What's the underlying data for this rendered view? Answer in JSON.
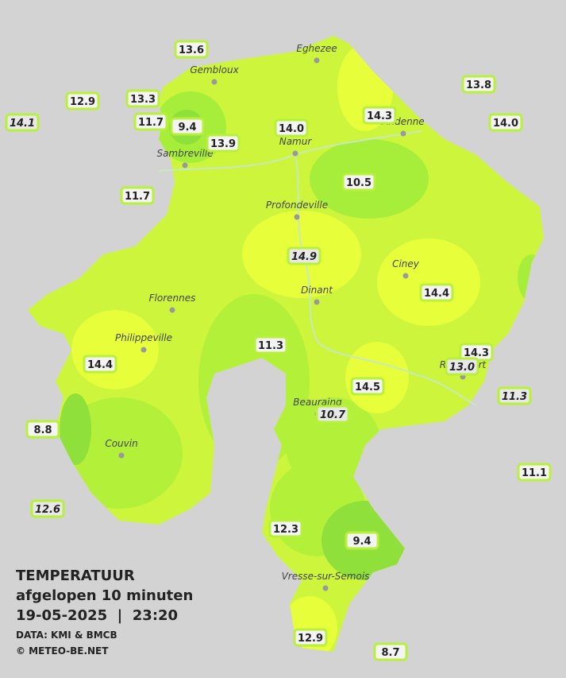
{
  "legend": {
    "title": "TEMPERATUUR",
    "period": "afgelopen 10 minuten",
    "timestamp": "19-05-2025  |  23:20",
    "source": "DATA: KMI & BMCB",
    "copyright": "© METEO-BE.NET"
  },
  "towns": [
    "Eghezee",
    "Gembloux",
    "Andenne",
    "Namur",
    "Sambreville",
    "Profondeville",
    "Ciney",
    "Florennes",
    "Dinant",
    "Philippeville",
    "Rochefort",
    "Beauraing",
    "Couvin",
    "Vresse-sur-Semois"
  ],
  "stations": [
    {
      "label": "13.6"
    },
    {
      "label": "12.9"
    },
    {
      "label": "13.3"
    },
    {
      "label": "14.1",
      "italic": true
    },
    {
      "label": "11.7"
    },
    {
      "label": "9.4"
    },
    {
      "label": "13.9"
    },
    {
      "label": "14.0"
    },
    {
      "label": "14.3"
    },
    {
      "label": "13.8"
    },
    {
      "label": "14.0"
    },
    {
      "label": "10.5"
    },
    {
      "label": "11.7"
    },
    {
      "label": "14.9",
      "italic": true
    },
    {
      "label": "14.4"
    },
    {
      "label": "11.3"
    },
    {
      "label": "14.3"
    },
    {
      "label": "13.0",
      "italic": true
    },
    {
      "label": "14.4"
    },
    {
      "label": "14.5"
    },
    {
      "label": "11.3",
      "italic": true
    },
    {
      "label": "10.7",
      "italic": true
    },
    {
      "label": "8.8"
    },
    {
      "label": "11.1"
    },
    {
      "label": "12.6",
      "italic": true
    },
    {
      "label": "12.3"
    },
    {
      "label": "9.4"
    },
    {
      "label": "12.9"
    },
    {
      "label": "8.7"
    }
  ]
}
